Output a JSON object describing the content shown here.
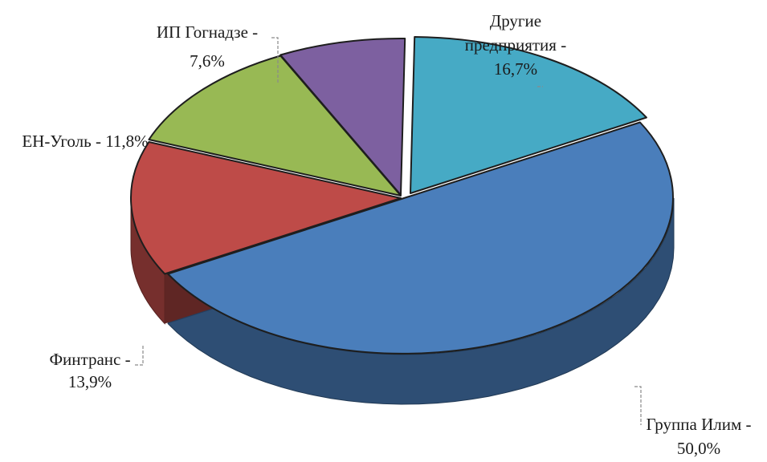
{
  "chart_data": {
    "type": "pie",
    "title": "",
    "style": "3d-exploded",
    "slices": [
      {
        "name": "Группа Илим",
        "value": 50.0,
        "label_lines": [
          "Группа Илим -",
          "50,0%"
        ],
        "color": "#4a7ebb"
      },
      {
        "name": "Финтранс",
        "value": 13.9,
        "label_lines": [
          "Финтранс -",
          "13,9%"
        ],
        "color": "#be4b48"
      },
      {
        "name": "ЕН-Уголь",
        "value": 11.8,
        "label_lines": [
          "ЕН-Уголь - 11,8%"
        ],
        "color": "#98b954"
      },
      {
        "name": "ИП Гогнадзе",
        "value": 7.6,
        "label_lines": [
          "ИП Гогнадзе -",
          "7,6%"
        ],
        "color": "#7d60a0"
      },
      {
        "name": "Другие предприятия",
        "value": 16.7,
        "label_lines": [
          "Другие",
          "предприятия -",
          "16,7%"
        ],
        "color": "#46aac5"
      }
    ],
    "legend": "none"
  }
}
